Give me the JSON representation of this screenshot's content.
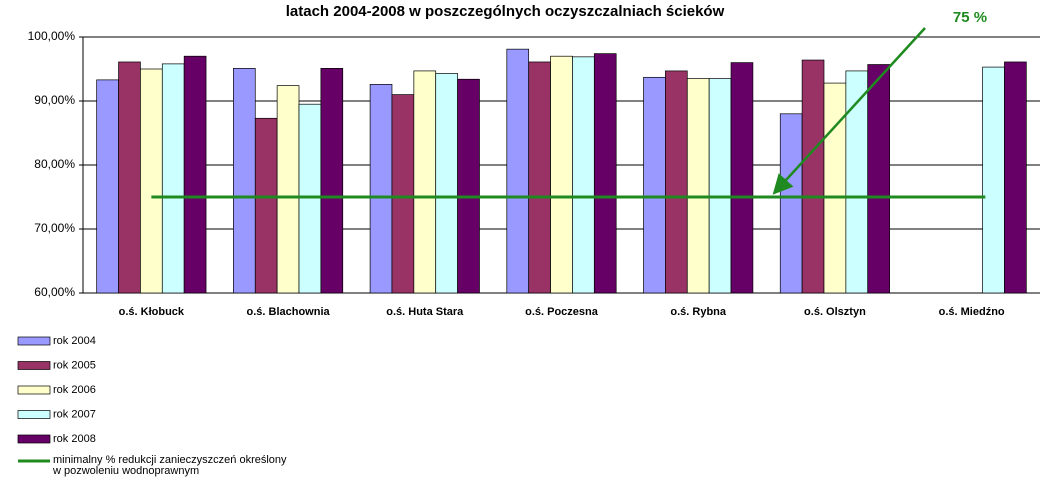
{
  "chart_data": {
    "type": "bar",
    "title": "latach 2004-2008 w poszczególnych oczyszczalniach ścieków",
    "categories": [
      "o.ś. Kłobuck",
      "o.ś. Blachownia",
      "o.ś. Huta Stara",
      "o.ś. Poczesna",
      "o.ś. Rybna",
      "o.ś. Olsztyn",
      "o.ś. Miedźno"
    ],
    "series": [
      {
        "name": "rok 2004",
        "color": "#9999ff",
        "values": [
          93.3,
          95.1,
          92.6,
          98.1,
          93.7,
          88.0,
          null
        ]
      },
      {
        "name": "rok 2005",
        "color": "#993366",
        "values": [
          96.1,
          87.3,
          91.0,
          96.1,
          94.7,
          96.4,
          null
        ]
      },
      {
        "name": "rok 2006",
        "color": "#ffffcc",
        "values": [
          95.0,
          92.4,
          94.7,
          97.0,
          93.5,
          92.8,
          null
        ]
      },
      {
        "name": "rok 2007",
        "color": "#ccffff",
        "values": [
          95.8,
          89.5,
          94.3,
          96.9,
          93.5,
          94.7,
          95.3
        ]
      },
      {
        "name": "rok 2008",
        "color": "#660066",
        "values": [
          97.0,
          95.1,
          93.4,
          97.4,
          96.0,
          95.7,
          96.1
        ]
      }
    ],
    "reference_line": {
      "name": "minimalny % redukcji zanieczyszczeń określony w pozwoleniu wodnoprawnym",
      "value": 75,
      "color": "#1f8a1f"
    },
    "annotation": "75 %",
    "ylim": [
      60,
      100
    ],
    "yticks": [
      {
        "value": 60,
        "label": "60,00%"
      },
      {
        "value": 70,
        "label": "70,00%"
      },
      {
        "value": 80,
        "label": "80,00%"
      },
      {
        "value": 90,
        "label": "90,00%"
      },
      {
        "value": 100,
        "label": "100,00%"
      }
    ],
    "grid": true
  }
}
